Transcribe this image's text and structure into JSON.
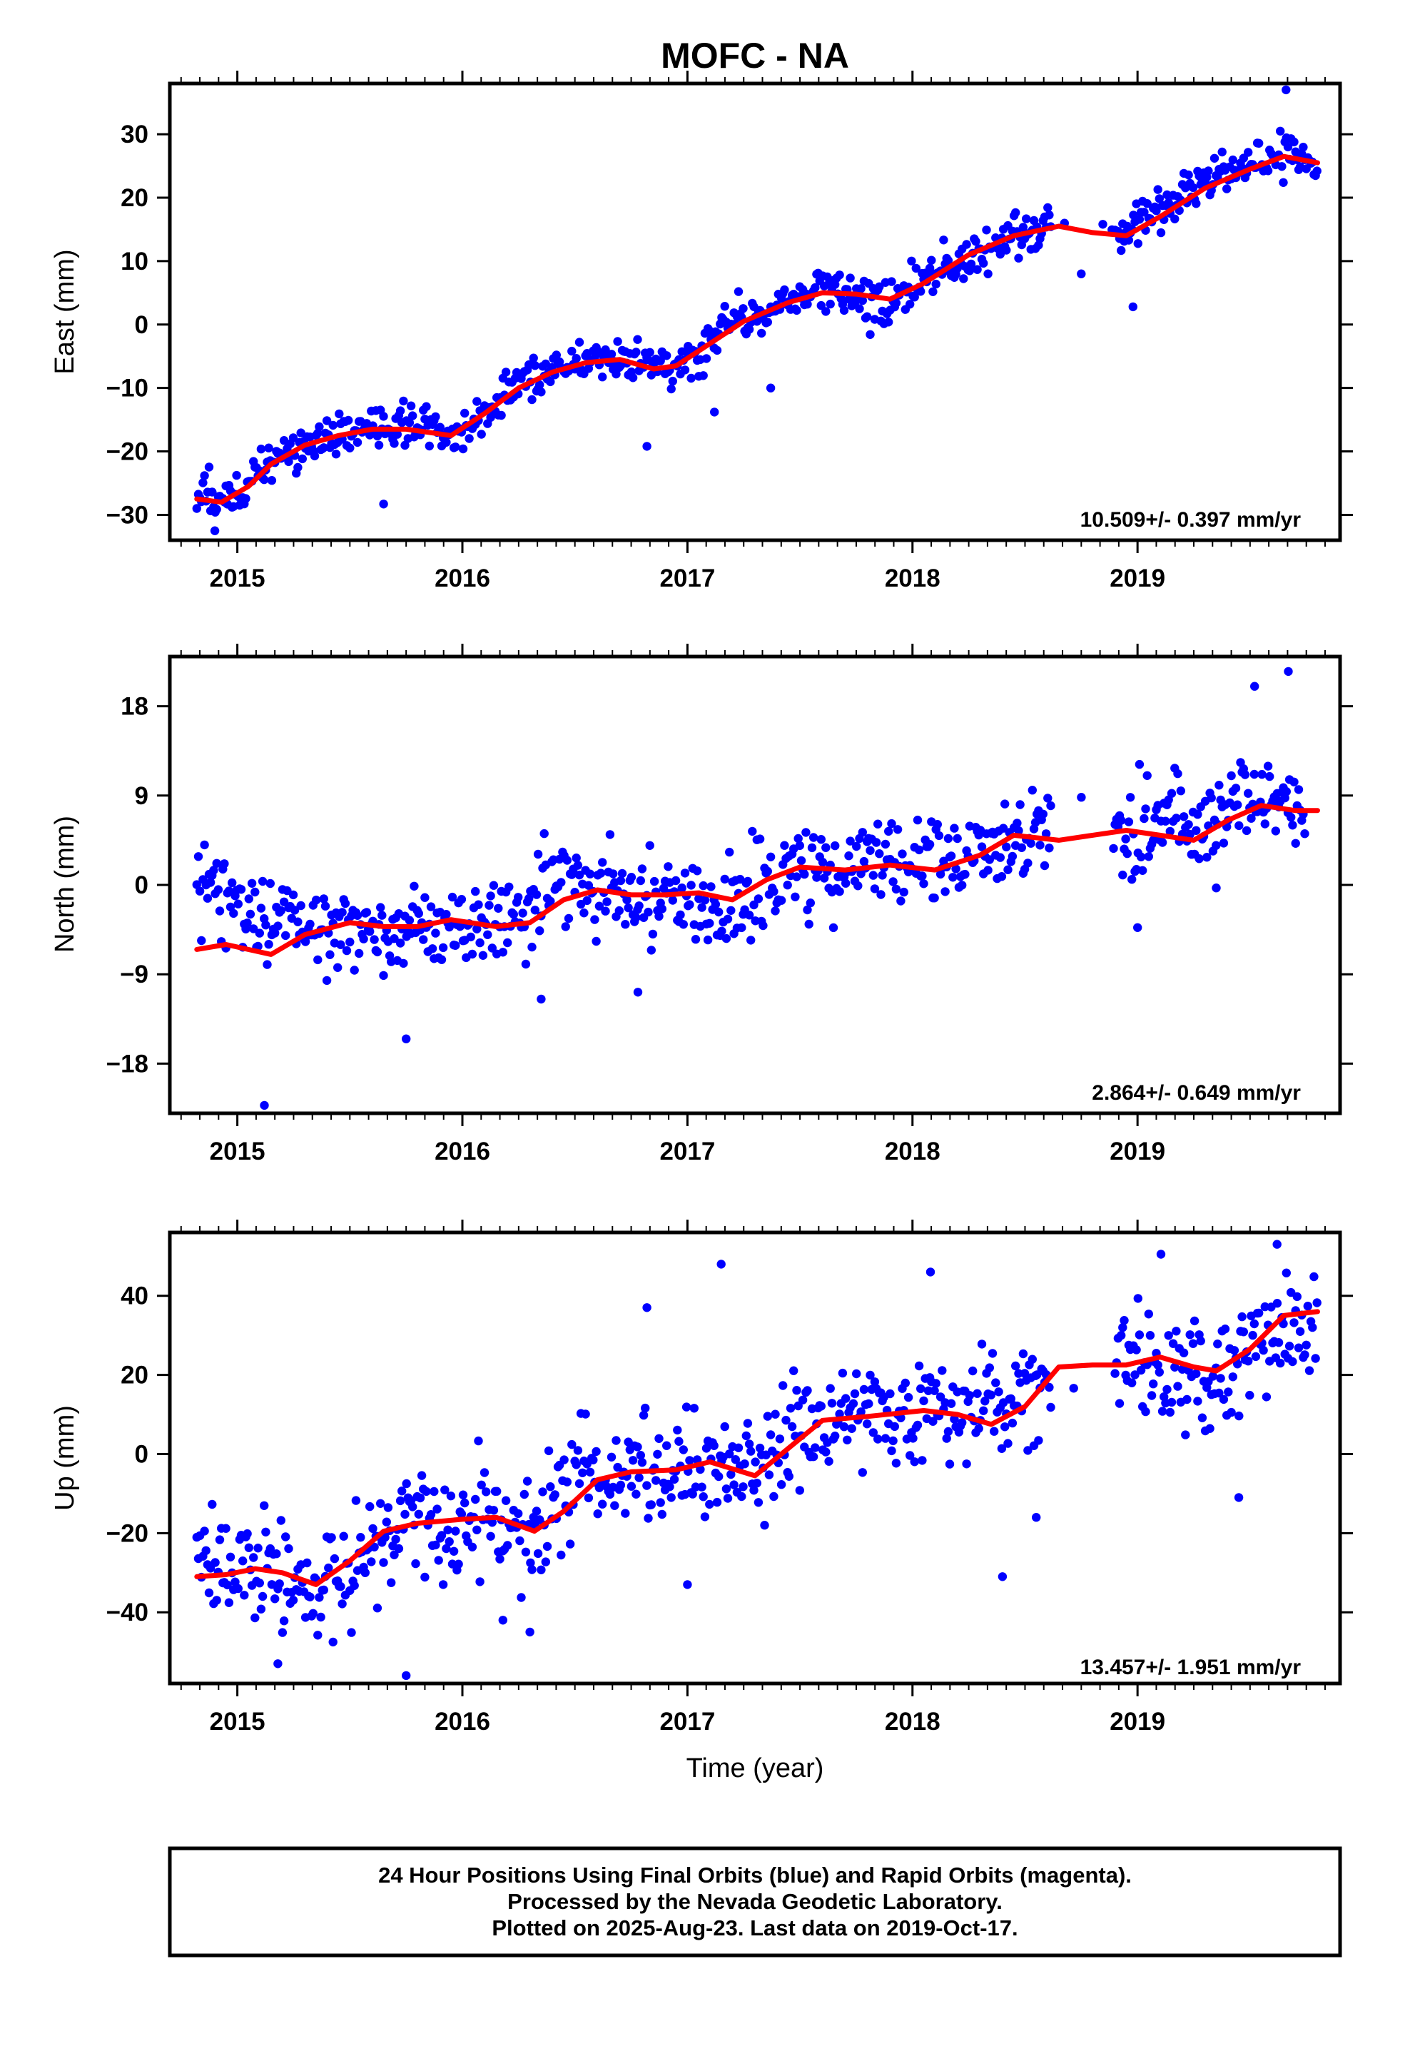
{
  "title": "MOFC - NA",
  "xlabel": "Time (year)",
  "caption": [
    "24 Hour Positions Using Final Orbits (blue) and Rapid Orbits (magenta).",
    "Processed by the Nevada Geodetic Laboratory.",
    "Plotted on 2025-Aug-23. Last data on 2019-Oct-17."
  ],
  "colors": {
    "points": "#0000ff",
    "fit": "#ff0000",
    "frame": "#000000"
  },
  "chart_data": [
    {
      "type": "scatter",
      "ylabel": "East (mm)",
      "rate_label": "10.509+/- 0.397 mm/yr",
      "xlim": [
        2014.7,
        2019.9
      ],
      "ylim": [
        -34,
        38
      ],
      "yticks": [
        -30,
        -20,
        -10,
        0,
        10,
        20,
        30
      ],
      "ytick_labels": [
        "−30",
        "−20",
        "−10",
        "0",
        "10",
        "20",
        "30"
      ],
      "xticks": [
        2015,
        2016,
        2017,
        2018,
        2019
      ],
      "xtick_labels": [
        "2015",
        "2016",
        "2017",
        "2018",
        "2019"
      ],
      "series": [
        {
          "kind": "points",
          "scatter_sd": 1.7,
          "values": [
            [
              2014.82,
              -26.5
            ],
            [
              2014.9,
              -27.5
            ],
            [
              2015.0,
              -26
            ],
            [
              2015.15,
              -21.5
            ],
            [
              2015.3,
              -19
            ],
            [
              2015.45,
              -17.5
            ],
            [
              2015.6,
              -16.5
            ],
            [
              2015.75,
              -16
            ],
            [
              2015.95,
              -17.5
            ],
            [
              2016.1,
              -14
            ],
            [
              2016.25,
              -9.5
            ],
            [
              2016.45,
              -6.5
            ],
            [
              2016.65,
              -5.5
            ],
            [
              2016.9,
              -6.5
            ],
            [
              2017.05,
              -4.5
            ],
            [
              2017.2,
              0
            ],
            [
              2017.35,
              2.5
            ],
            [
              2017.55,
              5
            ],
            [
              2017.7,
              5
            ],
            [
              2017.9,
              3.5
            ],
            [
              2018.1,
              7.5
            ],
            [
              2018.3,
              12
            ],
            [
              2018.5,
              14.5
            ],
            [
              2018.6,
              15.5
            ],
            [
              2018.95,
              14.5
            ],
            [
              2019.1,
              18.5
            ],
            [
              2019.25,
              22.5
            ],
            [
              2019.45,
              25
            ],
            [
              2019.65,
              26.5
            ],
            [
              2019.8,
              25
            ]
          ],
          "outliers": [
            [
              2014.9,
              -32.5
            ],
            [
              2015.65,
              -28.3
            ],
            [
              2016.82,
              -19.2
            ],
            [
              2017.12,
              -13.8
            ],
            [
              2017.37,
              -10
            ],
            [
              2018.75,
              8
            ],
            [
              2018.98,
              2.8
            ],
            [
              2019.66,
              37
            ]
          ]
        },
        {
          "kind": "fit",
          "values": [
            [
              2014.82,
              -27.5
            ],
            [
              2014.93,
              -28
            ],
            [
              2015.05,
              -25.5
            ],
            [
              2015.15,
              -22
            ],
            [
              2015.3,
              -19
            ],
            [
              2015.45,
              -17.5
            ],
            [
              2015.6,
              -16.5
            ],
            [
              2015.75,
              -16.5
            ],
            [
              2015.95,
              -17.5
            ],
            [
              2016.1,
              -14
            ],
            [
              2016.25,
              -10
            ],
            [
              2016.4,
              -7.5
            ],
            [
              2016.55,
              -6
            ],
            [
              2016.7,
              -5.5
            ],
            [
              2016.85,
              -7
            ],
            [
              2016.95,
              -6.5
            ],
            [
              2017.1,
              -3
            ],
            [
              2017.25,
              0.5
            ],
            [
              2017.45,
              3.5
            ],
            [
              2017.6,
              5
            ],
            [
              2017.75,
              4.8
            ],
            [
              2017.9,
              4
            ],
            [
              2018.05,
              6.5
            ],
            [
              2018.25,
              11
            ],
            [
              2018.45,
              14
            ],
            [
              2018.65,
              15.5
            ],
            [
              2018.8,
              14.5
            ],
            [
              2018.95,
              14
            ],
            [
              2019.1,
              17
            ],
            [
              2019.3,
              21.5
            ],
            [
              2019.5,
              24.5
            ],
            [
              2019.65,
              26.5
            ],
            [
              2019.8,
              25.5
            ]
          ]
        }
      ]
    },
    {
      "type": "scatter",
      "ylabel": "North (mm)",
      "rate_label": "2.864+/- 0.649 mm/yr",
      "xlim": [
        2014.7,
        2019.9
      ],
      "ylim": [
        -23,
        23
      ],
      "yticks": [
        -18,
        -9,
        0,
        9,
        18
      ],
      "ytick_labels": [
        "−18",
        "−9",
        "0",
        "9",
        "18"
      ],
      "xticks": [
        2015,
        2016,
        2017,
        2018,
        2019
      ],
      "xtick_labels": [
        "2015",
        "2016",
        "2017",
        "2018",
        "2019"
      ],
      "series": [
        {
          "kind": "points",
          "scatter_sd": 2.2,
          "values": [
            [
              2014.82,
              2
            ],
            [
              2014.95,
              -1.5
            ],
            [
              2015.15,
              -3.5
            ],
            [
              2015.3,
              -4
            ],
            [
              2015.5,
              -4
            ],
            [
              2015.7,
              -5
            ],
            [
              2015.9,
              -5
            ],
            [
              2016.1,
              -4
            ],
            [
              2016.3,
              -3
            ],
            [
              2016.45,
              0.5
            ],
            [
              2016.6,
              0
            ],
            [
              2016.8,
              -2
            ],
            [
              2017.0,
              -2
            ],
            [
              2017.15,
              -2
            ],
            [
              2017.35,
              0
            ],
            [
              2017.5,
              2
            ],
            [
              2017.7,
              2
            ],
            [
              2017.9,
              2
            ],
            [
              2018.05,
              1.5
            ],
            [
              2018.2,
              2
            ],
            [
              2018.4,
              4
            ],
            [
              2018.55,
              5
            ],
            [
              2018.95,
              5.5
            ],
            [
              2019.1,
              6
            ],
            [
              2019.25,
              5
            ],
            [
              2019.45,
              8
            ],
            [
              2019.6,
              9
            ],
            [
              2019.75,
              7
            ]
          ],
          "outliers": [
            [
              2015.12,
              -22.2
            ],
            [
              2015.75,
              -15.5
            ],
            [
              2016.35,
              -11.5
            ],
            [
              2016.78,
              -10.8
            ],
            [
              2019.0,
              -4.3
            ],
            [
              2019.35,
              -0.3
            ],
            [
              2019.52,
              20
            ],
            [
              2019.67,
              21.5
            ]
          ]
        },
        {
          "kind": "fit",
          "values": [
            [
              2014.82,
              -6.5
            ],
            [
              2014.95,
              -6
            ],
            [
              2015.15,
              -7
            ],
            [
              2015.3,
              -5
            ],
            [
              2015.5,
              -3.8
            ],
            [
              2015.65,
              -4.2
            ],
            [
              2015.8,
              -4.2
            ],
            [
              2015.95,
              -3.5
            ],
            [
              2016.15,
              -4.2
            ],
            [
              2016.3,
              -3.8
            ],
            [
              2016.45,
              -1.5
            ],
            [
              2016.6,
              -0.5
            ],
            [
              2016.75,
              -1
            ],
            [
              2016.9,
              -1
            ],
            [
              2017.05,
              -0.8
            ],
            [
              2017.2,
              -1.5
            ],
            [
              2017.35,
              0.5
            ],
            [
              2017.5,
              1.8
            ],
            [
              2017.7,
              1.5
            ],
            [
              2017.9,
              2
            ],
            [
              2018.1,
              1.5
            ],
            [
              2018.3,
              3
            ],
            [
              2018.45,
              5
            ],
            [
              2018.65,
              4.5
            ],
            [
              2018.8,
              5
            ],
            [
              2018.95,
              5.5
            ],
            [
              2019.1,
              5
            ],
            [
              2019.25,
              4.5
            ],
            [
              2019.4,
              6.5
            ],
            [
              2019.55,
              8
            ],
            [
              2019.7,
              7.5
            ],
            [
              2019.8,
              7.5
            ]
          ]
        }
      ]
    },
    {
      "type": "scatter",
      "ylabel": "Up (mm)",
      "rate_label": "13.457+/- 1.951 mm/yr",
      "xlim": [
        2014.7,
        2019.9
      ],
      "ylim": [
        -58,
        56
      ],
      "yticks": [
        -40,
        -20,
        0,
        20,
        40
      ],
      "ytick_labels": [
        "−40",
        "−20",
        "0",
        "20",
        "40"
      ],
      "xticks": [
        2015,
        2016,
        2017,
        2018,
        2019
      ],
      "xtick_labels": [
        "2015",
        "2016",
        "2017",
        "2018",
        "2019"
      ],
      "series": [
        {
          "kind": "points",
          "scatter_sd": 7,
          "values": [
            [
              2014.82,
              -28
            ],
            [
              2014.95,
              -30
            ],
            [
              2015.15,
              -30
            ],
            [
              2015.35,
              -35
            ],
            [
              2015.5,
              -27
            ],
            [
              2015.7,
              -17
            ],
            [
              2015.9,
              -18
            ],
            [
              2016.1,
              -15
            ],
            [
              2016.3,
              -22
            ],
            [
              2016.5,
              -8
            ],
            [
              2016.7,
              -3
            ],
            [
              2016.9,
              -5
            ],
            [
              2017.1,
              -2
            ],
            [
              2017.3,
              -5
            ],
            [
              2017.5,
              5
            ],
            [
              2017.7,
              9
            ],
            [
              2017.9,
              10
            ],
            [
              2018.1,
              12
            ],
            [
              2018.3,
              10
            ],
            [
              2018.5,
              16
            ],
            [
              2018.95,
              24
            ],
            [
              2019.1,
              22
            ],
            [
              2019.3,
              18
            ],
            [
              2019.5,
              27
            ],
            [
              2019.65,
              32
            ],
            [
              2019.8,
              34
            ]
          ],
          "outliers": [
            [
              2015.18,
              -53
            ],
            [
              2015.75,
              -56
            ],
            [
              2016.18,
              -42
            ],
            [
              2016.3,
              -45
            ],
            [
              2016.82,
              37
            ],
            [
              2017.15,
              48
            ],
            [
              2017.0,
              -33
            ],
            [
              2018.08,
              46
            ],
            [
              2018.4,
              -31
            ],
            [
              2019.62,
              53
            ],
            [
              2019.45,
              -11
            ],
            [
              2018.55,
              -16
            ]
          ]
        },
        {
          "kind": "fit",
          "values": [
            [
              2014.82,
              -31
            ],
            [
              2014.95,
              -30.5
            ],
            [
              2015.08,
              -29
            ],
            [
              2015.2,
              -30
            ],
            [
              2015.35,
              -33
            ],
            [
              2015.5,
              -27
            ],
            [
              2015.65,
              -19.5
            ],
            [
              2015.8,
              -17.5
            ],
            [
              2016.0,
              -16.5
            ],
            [
              2016.15,
              -16
            ],
            [
              2016.32,
              -19.5
            ],
            [
              2016.45,
              -14.5
            ],
            [
              2016.6,
              -6.5
            ],
            [
              2016.75,
              -4.5
            ],
            [
              2016.95,
              -4
            ],
            [
              2017.1,
              -2
            ],
            [
              2017.3,
              -5.5
            ],
            [
              2017.45,
              1.5
            ],
            [
              2017.6,
              8.5
            ],
            [
              2017.8,
              9.5
            ],
            [
              2018.05,
              11
            ],
            [
              2018.2,
              10
            ],
            [
              2018.35,
              7.5
            ],
            [
              2018.5,
              12
            ],
            [
              2018.65,
              22
            ],
            [
              2018.8,
              22.5
            ],
            [
              2018.95,
              22.5
            ],
            [
              2019.1,
              24.5
            ],
            [
              2019.25,
              22
            ],
            [
              2019.35,
              21
            ],
            [
              2019.5,
              26.5
            ],
            [
              2019.65,
              35
            ],
            [
              2019.8,
              36
            ]
          ]
        }
      ]
    }
  ]
}
